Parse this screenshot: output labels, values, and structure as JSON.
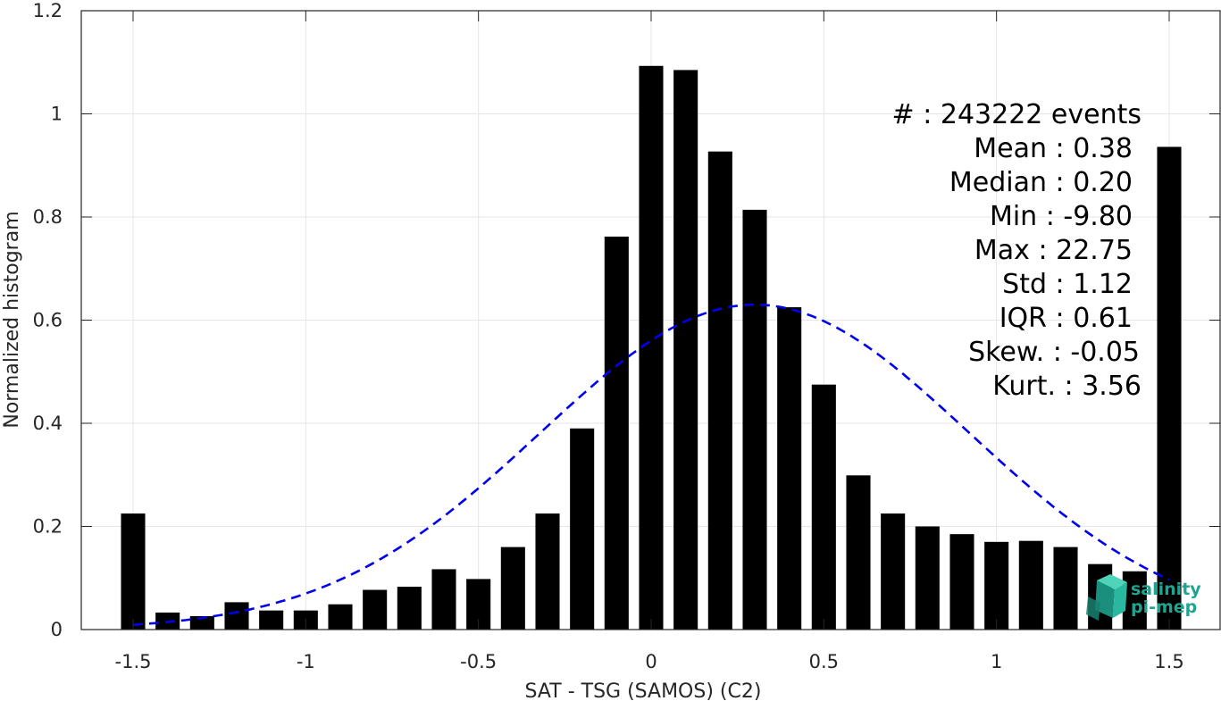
{
  "chart_data": {
    "type": "bar",
    "xlabel": "SAT - TSG (SAMOS) (C2)",
    "ylabel": "Normalized histogram",
    "xlim": [
      -1.65,
      1.65
    ],
    "ylim": [
      0,
      1.2
    ],
    "xticks": [
      -1.5,
      -1,
      -0.5,
      0,
      0.5,
      1,
      1.5
    ],
    "xtick_labels": [
      "-1.5",
      "-1",
      "-0.5",
      "0",
      "0.5",
      "1",
      "1.5"
    ],
    "yticks": [
      0,
      0.2,
      0.4,
      0.6,
      0.8,
      1,
      1.2
    ],
    "ytick_labels": [
      "0",
      "0.2",
      "0.4",
      "0.6",
      "0.8",
      "1",
      "1.2"
    ],
    "grid": true,
    "bar_color": "#000000",
    "bar_width": 0.07,
    "x": [
      -1.5,
      -1.4,
      -1.3,
      -1.2,
      -1.1,
      -1.0,
      -0.9,
      -0.8,
      -0.7,
      -0.6,
      -0.5,
      -0.4,
      -0.3,
      -0.2,
      -0.1,
      0.0,
      0.1,
      0.2,
      0.3,
      0.4,
      0.5,
      0.6,
      0.7,
      0.8,
      0.9,
      1.0,
      1.1,
      1.2,
      1.3,
      1.4,
      1.5
    ],
    "values": [
      0.225,
      0.033,
      0.026,
      0.053,
      0.037,
      0.037,
      0.049,
      0.077,
      0.083,
      0.117,
      0.098,
      0.16,
      0.225,
      0.39,
      0.762,
      1.093,
      1.085,
      0.927,
      0.814,
      0.625,
      0.475,
      0.299,
      0.225,
      0.2,
      0.185,
      0.17,
      0.172,
      0.16,
      0.127,
      0.113,
      0.936
    ],
    "fit_curve": {
      "type": "gaussian",
      "style": "dashed",
      "color": "#0000ee",
      "mean": 0.3,
      "std": 0.62,
      "peak": 0.63,
      "x_range": [
        -1.5,
        1.5
      ]
    },
    "annotations": [
      "#  : 243222 events",
      "Mean : 0.38",
      "Median : 0.20",
      "Min : -9.80",
      "Max : 22.75",
      "Std : 1.12",
      "IQR : 0.61",
      "Skew. : -0.05",
      "Kurt. : 3.56"
    ]
  },
  "logo": {
    "line1": "salinity",
    "line2": "pi-mep",
    "color": "#1fa58f"
  }
}
